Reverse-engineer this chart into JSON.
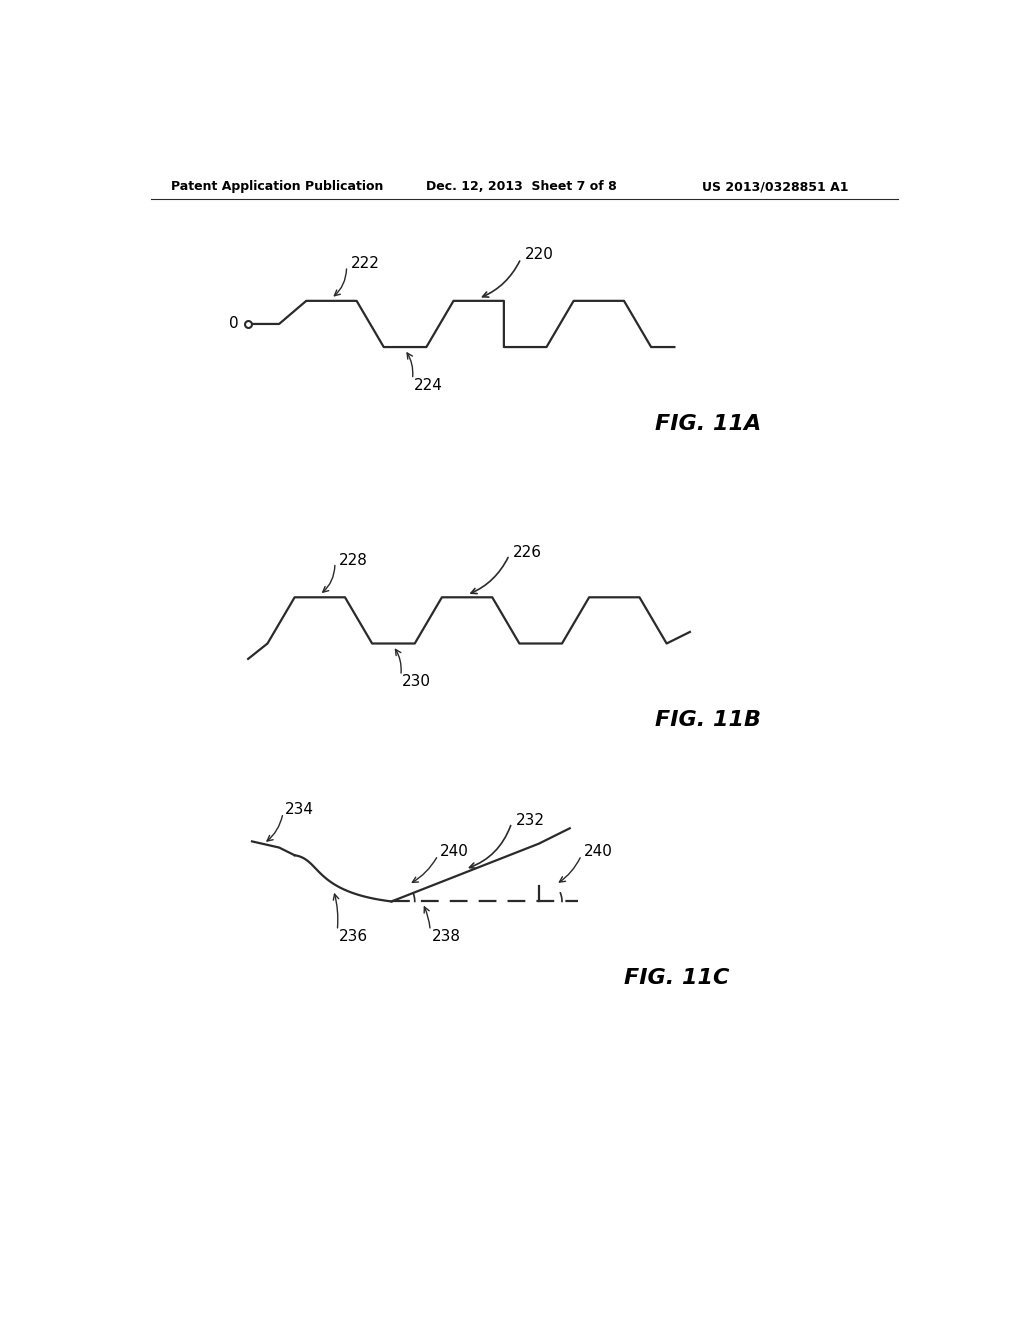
{
  "bg_color": "#ffffff",
  "line_color": "#2a2a2a",
  "text_color": "#000000",
  "header_left": "Patent Application Publication",
  "header_mid": "Dec. 12, 2013  Sheet 7 of 8",
  "header_right": "US 2013/0328851 A1",
  "fig11a_label": "FIG. 11A",
  "fig11b_label": "FIG. 11B",
  "fig11c_label": "FIG. 11C",
  "label_220": "220",
  "label_222": "222",
  "label_224": "224",
  "label_226": "226",
  "label_228": "228",
  "label_230": "230",
  "label_232": "232",
  "label_234": "234",
  "label_236": "236",
  "label_238": "238",
  "label_240a": "240",
  "label_240b": "240",
  "label_0": "0"
}
